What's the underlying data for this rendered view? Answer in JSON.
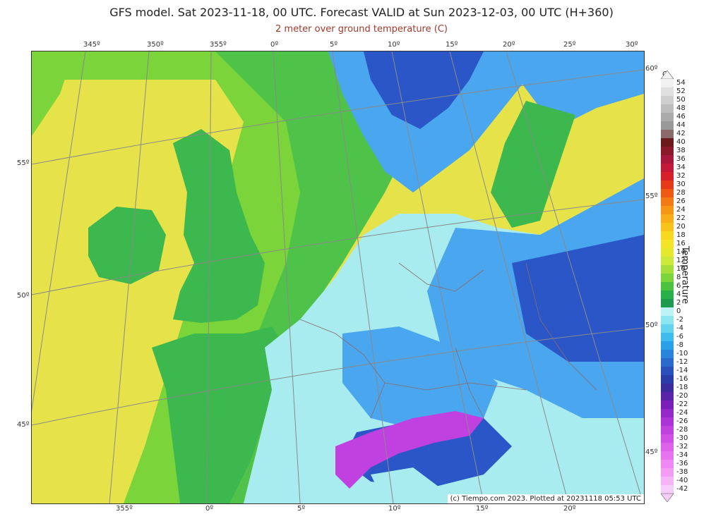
{
  "header": {
    "title": "GFS model. Sat 2023-11-18, 00 UTC. Forecast VALID at Sun 2023-12-03, 00 UTC (H+360)",
    "subtitle": "2 meter over ground temperature (C)"
  },
  "map": {
    "top_lon_labels": [
      "345º",
      "350º",
      "355º",
      "0º",
      "5º",
      "10º",
      "15º",
      "20º",
      "25º",
      "30º"
    ],
    "bottom_lon_labels": [
      "355º",
      "0º",
      "5º",
      "10º",
      "15º",
      "20º"
    ],
    "left_lat_labels": [
      "55º",
      "50º",
      "45º"
    ],
    "right_lat_labels": [
      "60º",
      "55º",
      "50º",
      "45º"
    ],
    "copyright": "(c) Tiempo.com 2023. Plotted at 20231118 05:53 UTC",
    "colors": {
      "ocean_west": "#e6e24a",
      "ocean_mid": "#7ad43a",
      "ocean_near": "#4fc24a",
      "land_mild": "#3cb84e",
      "cold_light": "#a8ecf0",
      "cold_mid": "#4aa6ee",
      "cold_deep": "#2a56c8",
      "alps": "#c040e0"
    }
  },
  "legend": {
    "unit": "C",
    "title": "Temperature",
    "labels": [
      "54",
      "52",
      "50",
      "48",
      "46",
      "44",
      "42",
      "40",
      "38",
      "36",
      "34",
      "32",
      "30",
      "28",
      "26",
      "24",
      "22",
      "20",
      "18",
      "16",
      "14",
      "12",
      "10",
      "8",
      "6",
      "4",
      "2",
      "0",
      "-2",
      "-4",
      "-6",
      "-8",
      "-10",
      "-12",
      "-14",
      "-16",
      "-18",
      "-20",
      "-22",
      "-24",
      "-26",
      "-28",
      "-30",
      "-32",
      "-34",
      "-36",
      "-38",
      "-40",
      "-42"
    ],
    "colors": [
      "#f2f2f2",
      "#e0e0e0",
      "#cfcfcf",
      "#bdbdbd",
      "#ababab",
      "#999999",
      "#8a6a6a",
      "#6a1a1a",
      "#8a1a2a",
      "#a8183a",
      "#c41a3a",
      "#d8202a",
      "#e43a1a",
      "#ee5a14",
      "#f27a14",
      "#f69616",
      "#f8ae18",
      "#f8c41c",
      "#f6d820",
      "#f2e426",
      "#e6e830",
      "#cce83a",
      "#a8de3a",
      "#7ad43a",
      "#4cc23e",
      "#2ab04a",
      "#1e9a4e",
      "#bdf2f6",
      "#8ee6f0",
      "#64d4ee",
      "#3ebcec",
      "#2aa0e8",
      "#2a84dc",
      "#2a6acc",
      "#2a50bc",
      "#2a3ca8",
      "#3a2c9c",
      "#5a24a8",
      "#7a20b8",
      "#9428c8",
      "#ac34d6",
      "#c040e0",
      "#d050e6",
      "#dc62ea",
      "#e674ee",
      "#ee88f2",
      "#f29cf4",
      "#f4b4f6",
      "#f6ccf8"
    ]
  }
}
